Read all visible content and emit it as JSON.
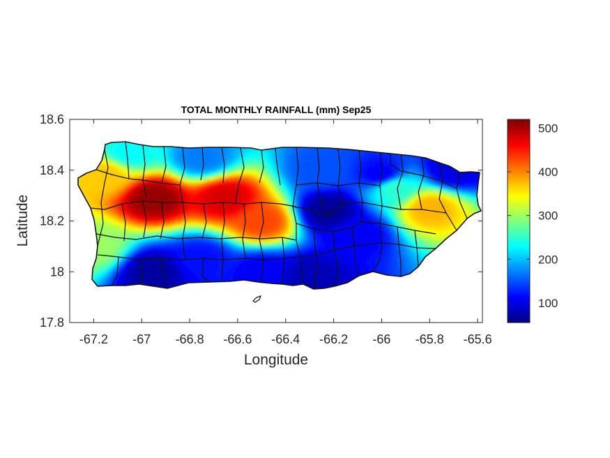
{
  "chart_data": {
    "type": "heatmap",
    "title": "TOTAL MONTHLY RAINFALL (mm) Sep25",
    "xlabel": "Longitude",
    "ylabel": "Latitude",
    "xlim": [
      -67.3,
      -65.58
    ],
    "ylim": [
      17.8,
      18.6
    ],
    "x_ticks": [
      -67.2,
      -67,
      -66.8,
      -66.6,
      -66.4,
      -66.2,
      -66,
      -65.8,
      -65.6
    ],
    "x_tick_labels": [
      "-67.2",
      "-67",
      "-66.8",
      "-66.6",
      "-66.4",
      "-66.2",
      "-66",
      "-65.8",
      "-65.6"
    ],
    "y_ticks": [
      17.8,
      18,
      18.2,
      18.4,
      18.6
    ],
    "y_tick_labels": [
      "17.8",
      "18",
      "18.2",
      "18.4",
      "18.6"
    ],
    "colorbar": {
      "colormap": "jet",
      "range": [
        55,
        520
      ],
      "ticks": [
        100,
        200,
        300,
        400,
        500
      ],
      "tick_labels": [
        "100",
        "200",
        "300",
        "400",
        "500"
      ]
    },
    "rainfall_centers_mm": [
      {
        "lon": -66.95,
        "lat": 18.29,
        "value": 510
      },
      {
        "lon": -66.65,
        "lat": 18.29,
        "value": 480
      },
      {
        "lon": -66.5,
        "lat": 18.2,
        "value": 430
      },
      {
        "lon": -67.15,
        "lat": 18.38,
        "value": 370
      },
      {
        "lon": -67.2,
        "lat": 18.1,
        "value": 300
      },
      {
        "lon": -65.8,
        "lat": 18.25,
        "value": 380
      },
      {
        "lon": -65.95,
        "lat": 18.33,
        "value": 250
      },
      {
        "lon": -66.75,
        "lat": 18.45,
        "value": 170
      },
      {
        "lon": -67.05,
        "lat": 18.47,
        "value": 230
      },
      {
        "lon": -66.22,
        "lat": 18.24,
        "value": 65
      },
      {
        "lon": -66.1,
        "lat": 18.15,
        "value": 110
      },
      {
        "lon": -66.0,
        "lat": 18.38,
        "value": 110
      },
      {
        "lon": -66.25,
        "lat": 18.4,
        "value": 150
      },
      {
        "lon": -66.3,
        "lat": 17.98,
        "value": 80
      },
      {
        "lon": -66.95,
        "lat": 18.0,
        "value": 70
      },
      {
        "lon": -66.5,
        "lat": 18.0,
        "value": 110
      },
      {
        "lon": -66.75,
        "lat": 18.05,
        "value": 120
      },
      {
        "lon": -65.7,
        "lat": 18.4,
        "value": 100
      }
    ],
    "grid": false
  }
}
